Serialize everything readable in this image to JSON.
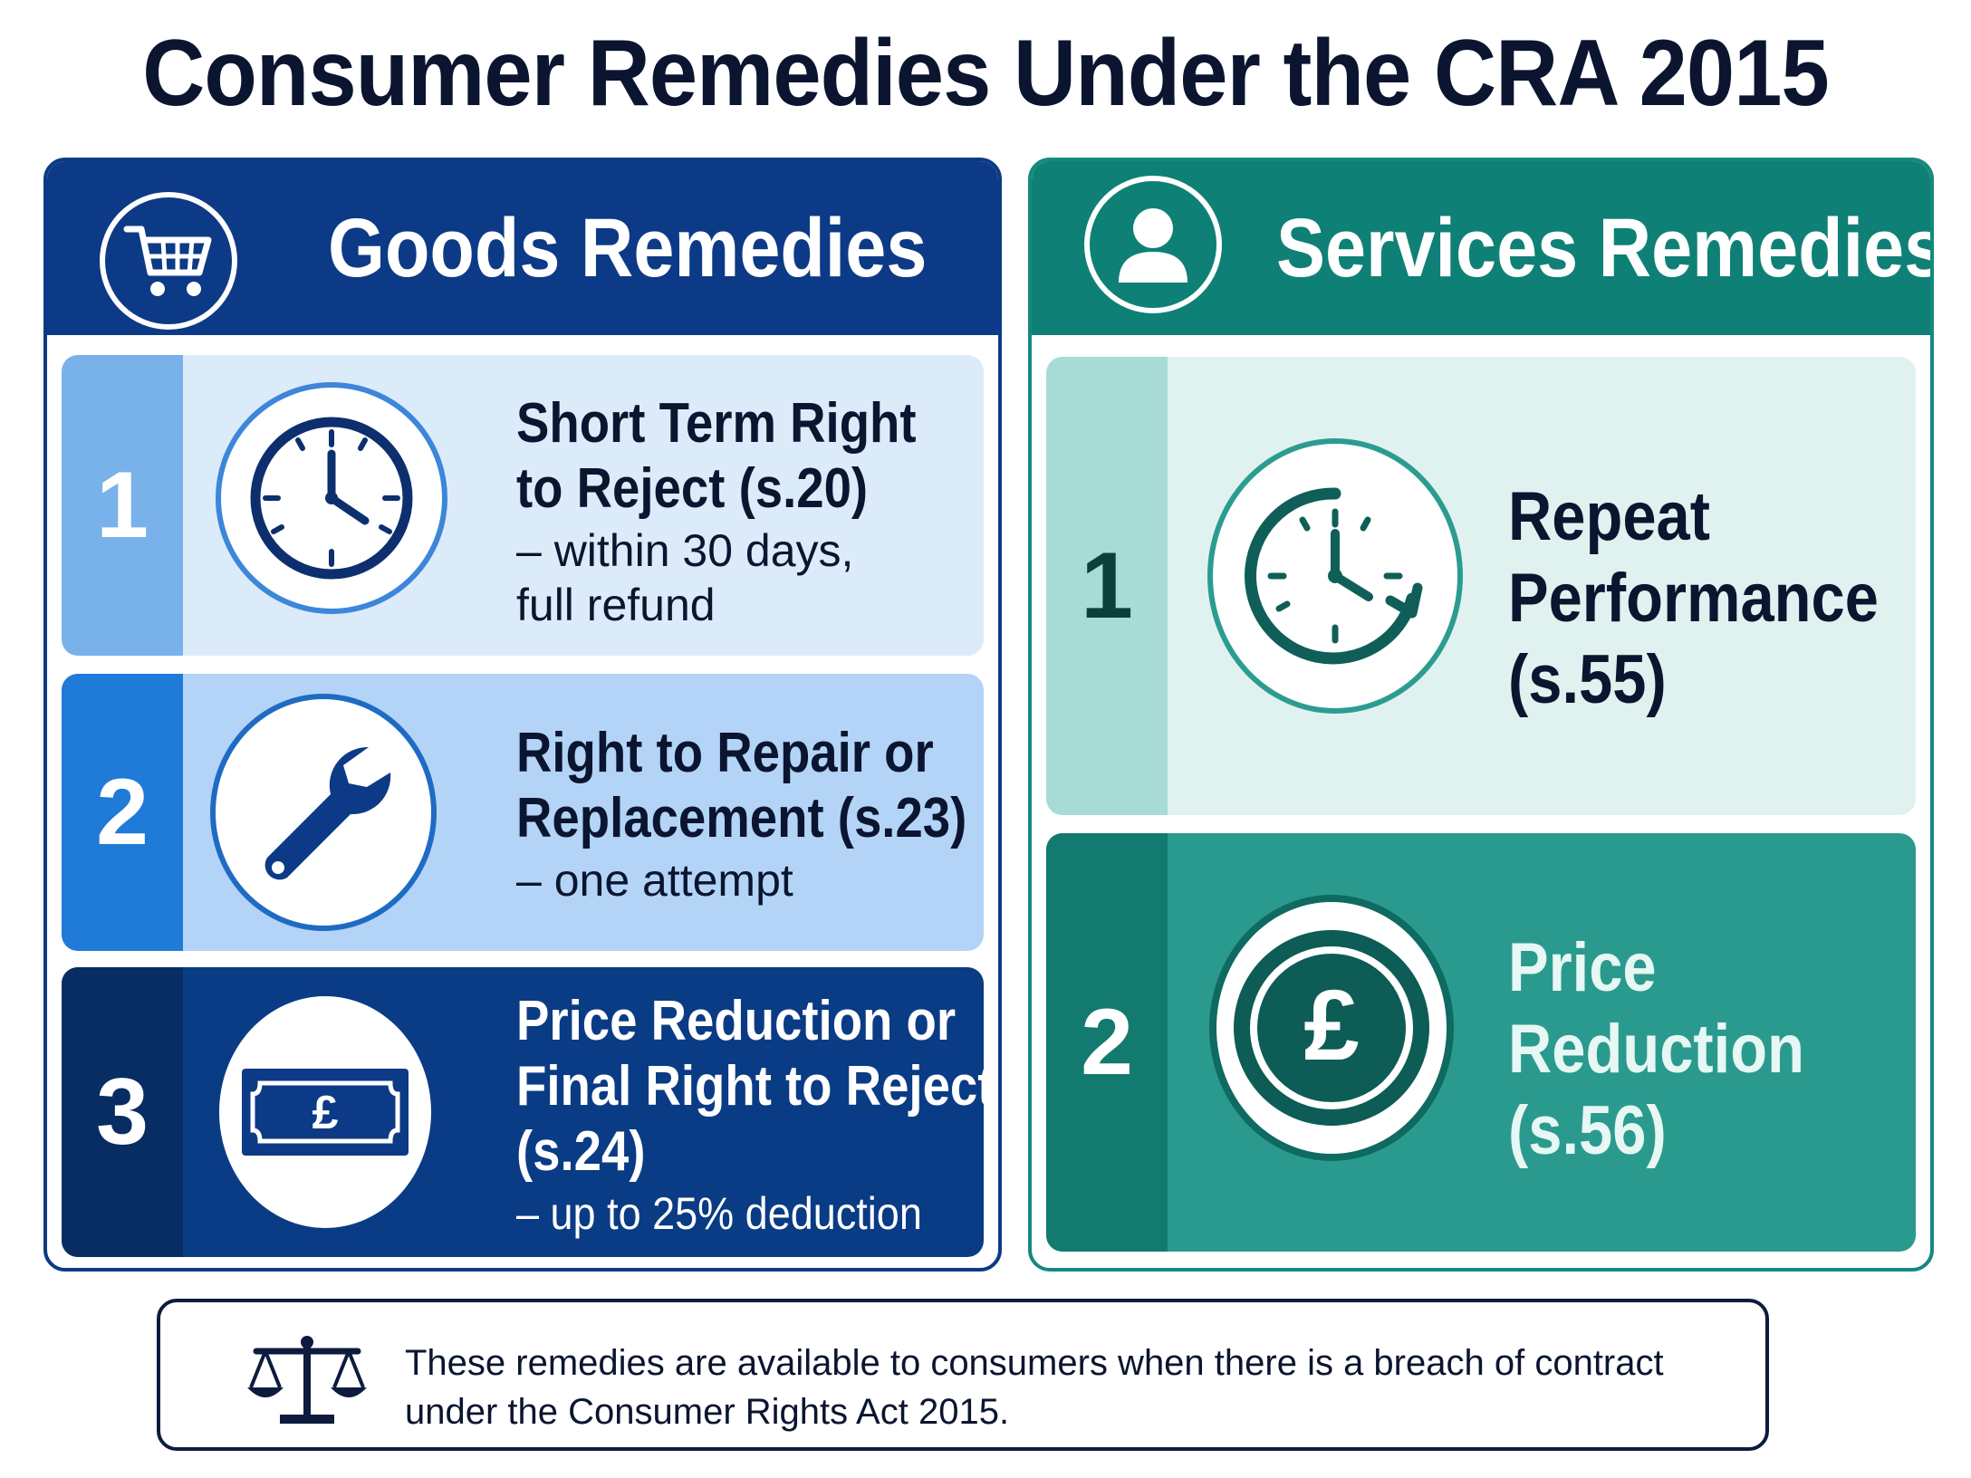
{
  "title": "Consumer Remedies Under the CRA 2015",
  "goods": {
    "title": "Goods Remedies",
    "icon": "shopping-cart-icon",
    "items": [
      {
        "number": "1",
        "heading_line1": "Short Term Right",
        "heading_line2": "to Reject (s.20)",
        "sub_line1": "– within 30 days,",
        "sub_line2": "full refund",
        "icon": "clock-icon"
      },
      {
        "number": "2",
        "heading_line1": "Right to Repair or",
        "heading_line2": "Replacement (s.23)",
        "sub_line1": "– one attempt",
        "icon": "wrench-icon"
      },
      {
        "number": "3",
        "heading_line1": "Price Reduction or",
        "heading_line2": "Final Right to Reject",
        "heading_line3": "(s.24)",
        "sub_line1": "– up to 25% deduction",
        "icon": "banknote-icon",
        "icon_text": "£"
      }
    ]
  },
  "services": {
    "title": "Services Remedies",
    "icon": "person-icon",
    "items": [
      {
        "number": "1",
        "heading_line1": "Repeat",
        "heading_line2": "Performance",
        "heading_line3": "(s.55)",
        "icon": "clock-repeat-icon"
      },
      {
        "number": "2",
        "heading_line1": "Price",
        "heading_line2": "Reduction",
        "heading_line3": "(s.56)",
        "icon": "pound-coin-icon",
        "icon_text": "£"
      }
    ]
  },
  "footer": {
    "icon": "scales-icon",
    "line1": "These remedies are available to consumers when there is a breach of contract",
    "line2": "under the Consumer Rights Act 2015."
  },
  "colors": {
    "goods_navy": "#0d3a86",
    "services_teal": "#0f8076",
    "goods_row1": "#dcebfa",
    "goods_row2": "#b3d4f6",
    "goods_row3": "#0a3b85",
    "services_row1": "#e0f2f0",
    "services_row2": "#2b9a8e"
  }
}
